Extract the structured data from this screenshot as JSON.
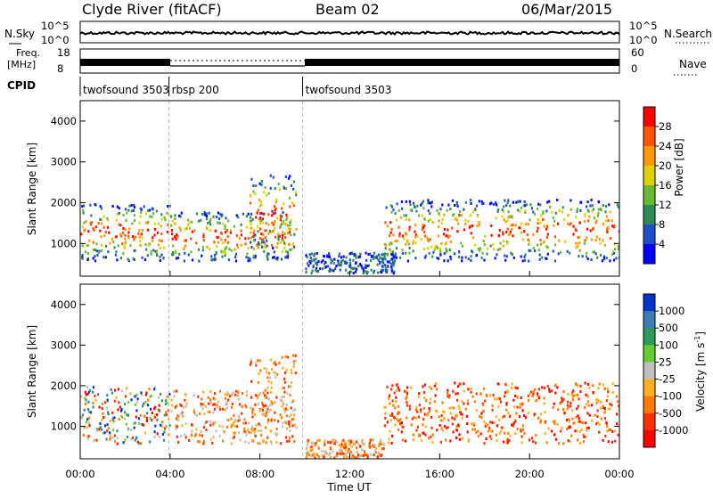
{
  "header": {
    "station": "Clyde River (fitACF)",
    "beam": "Beam 02",
    "date": "06/Mar/2015"
  },
  "strip": {
    "nsky_label": "N.Sky",
    "nsearch_label": "N.Search",
    "freq_label_1": "Freq.",
    "freq_label_2": "[MHz]",
    "nave_label": "Nave",
    "cpid_label": "CPID",
    "nsky_ticks": [
      "10^5",
      "10^0"
    ],
    "nsearch_ticks": [
      "10^5",
      "10^0"
    ],
    "freq_ticks": [
      "18",
      "8"
    ],
    "nave_ticks": [
      "60",
      "0"
    ],
    "cpid_segments": [
      {
        "start_h": 0.0,
        "end_h": 3.95,
        "label": "twofsound 3503"
      },
      {
        "start_h": 3.95,
        "end_h": 9.9,
        "label": "rbsp 200"
      },
      {
        "start_h": 9.9,
        "end_h": 24.0,
        "label": "twofsound 3503"
      }
    ]
  },
  "chart_data": [
    {
      "type": "heatmap",
      "name": "power",
      "xlabel": "",
      "ylabel": "Slant Range [km]",
      "x_range_hours": [
        0,
        24
      ],
      "ylim": [
        200,
        4500
      ],
      "y_ticks": [
        1000,
        2000,
        3000,
        4000
      ],
      "colorbar": {
        "label": "Power [dB]",
        "ticks": [
          4,
          8,
          12,
          16,
          20,
          24,
          28
        ],
        "colors": [
          "#0000ff",
          "#1f4fc8",
          "#2e8b57",
          "#66bb33",
          "#e0d000",
          "#ff9900",
          "#ff5500",
          "#ff0000"
        ]
      },
      "regions": [
        {
          "h0": 0.0,
          "h1": 4.0,
          "r0": 600,
          "r1": 2000,
          "level": "high"
        },
        {
          "h0": 4.0,
          "h1": 9.5,
          "r0": 600,
          "r1": 1800,
          "level": "high"
        },
        {
          "h0": 7.5,
          "h1": 9.6,
          "r0": 900,
          "r1": 2700,
          "level": "medium"
        },
        {
          "h0": 10.0,
          "h1": 14.0,
          "r0": 300,
          "r1": 800,
          "level": "low"
        },
        {
          "h0": 13.5,
          "h1": 24.0,
          "r0": 600,
          "r1": 2100,
          "level": "high"
        }
      ]
    },
    {
      "type": "heatmap",
      "name": "velocity",
      "xlabel": "Time UT",
      "ylabel": "Slant Range [km]",
      "x_range_hours": [
        0,
        24
      ],
      "x_ticks": [
        "00:00",
        "04:00",
        "08:00",
        "12:00",
        "16:00",
        "20:00",
        "00:00"
      ],
      "ylim": [
        200,
        4500
      ],
      "y_ticks": [
        1000,
        2000,
        3000,
        4000
      ],
      "colorbar": {
        "label": "Velocity [m s^-1]",
        "ticks": [
          "1000",
          "500",
          "100",
          "25",
          "-25",
          "-100",
          "-500",
          "-1000"
        ],
        "colors": [
          "#0033cc",
          "#3a7fb0",
          "#2e9a5a",
          "#66cc33",
          "#c0c0c0",
          "#ffb020",
          "#ff7a00",
          "#ff3000",
          "#ff0000"
        ]
      },
      "regions": [
        {
          "h0": 0.0,
          "h1": 4.0,
          "r0": 600,
          "r1": 2000,
          "level": "mixed"
        },
        {
          "h0": 4.0,
          "h1": 9.5,
          "r0": 600,
          "r1": 1900,
          "level": "negative"
        },
        {
          "h0": 7.5,
          "h1": 9.6,
          "r0": 900,
          "r1": 2800,
          "level": "negative"
        },
        {
          "h0": 10.0,
          "h1": 13.5,
          "r0": 250,
          "r1": 700,
          "level": "negative"
        },
        {
          "h0": 13.5,
          "h1": 24.0,
          "r0": 600,
          "r1": 2100,
          "level": "strong-negative"
        }
      ]
    }
  ]
}
